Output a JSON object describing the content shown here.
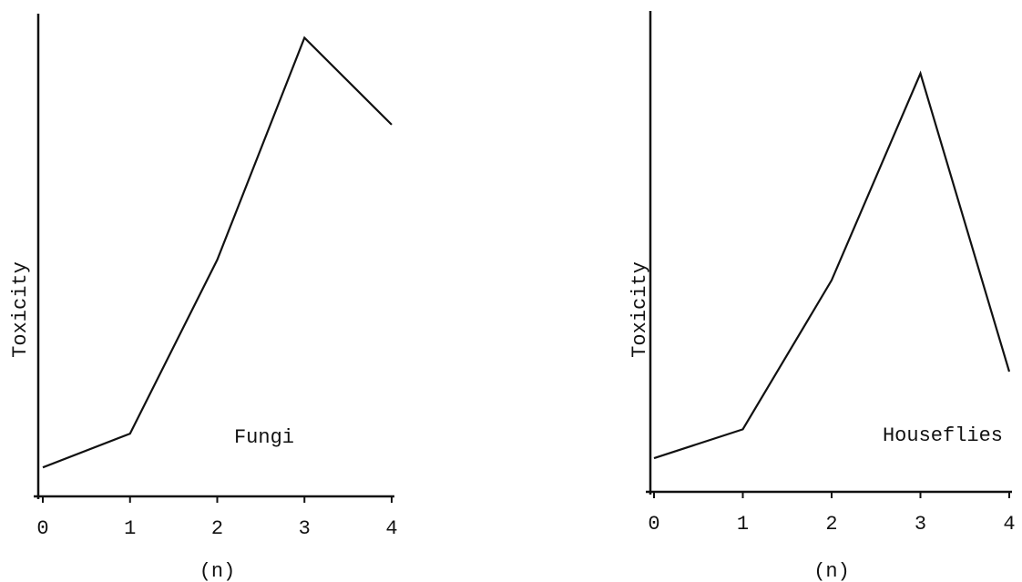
{
  "chart_data": [
    {
      "type": "line",
      "y_label": "Toxicity",
      "x_label": "(n)",
      "annotation": "Fungi",
      "x": [
        0,
        1,
        2,
        3,
        4
      ],
      "series": [
        {
          "name": "Fungi",
          "color": "#111111",
          "values": [
            6,
            13,
            49,
            95,
            77
          ]
        }
      ],
      "xlim": [
        0,
        4
      ],
      "xticks": [
        0,
        1,
        2,
        3,
        4
      ],
      "ylim": [
        0,
        100
      ]
    },
    {
      "type": "line",
      "y_label": "Toxicity",
      "x_label": "(n)",
      "annotation": "Houseflies",
      "x": [
        0,
        1,
        2,
        3,
        4
      ],
      "series": [
        {
          "name": "Houseflies",
          "color": "#111111",
          "values": [
            7,
            13,
            44,
            87,
            25
          ]
        }
      ],
      "xlim": [
        0,
        4
      ],
      "xticks": [
        0,
        1,
        2,
        3,
        4
      ],
      "ylim": [
        0,
        100
      ]
    }
  ]
}
